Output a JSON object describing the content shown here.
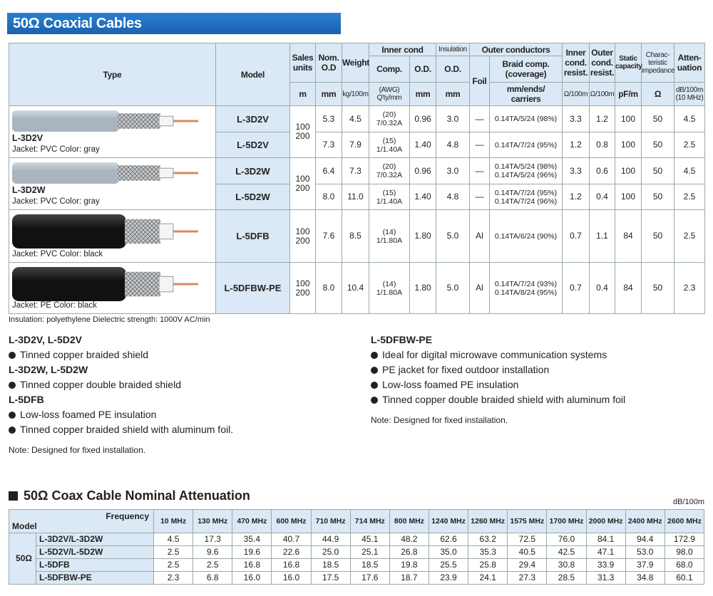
{
  "header": {
    "title": "50Ω Coaxial Cables"
  },
  "spec_table": {
    "head": {
      "type": "Type",
      "model": "Model",
      "sales": [
        "Sales",
        "units"
      ],
      "sales_unit": "m",
      "nom_od": [
        "Nom.",
        "O.D"
      ],
      "nom_od_unit": "mm",
      "weight": "Weight",
      "weight_unit": "kg/100m",
      "inner_cond": "Inner cond",
      "comp": "Comp.",
      "comp_unit": [
        "(AWG)",
        "Q'ty/mm"
      ],
      "inner_od": "O.D.",
      "inner_od_unit": "mm",
      "insulation": "Insulation",
      "ins_od": "O.D.",
      "ins_od_unit": "mm",
      "outer": "Outer conductors",
      "foil": "Foil",
      "braid": [
        "Braid comp.",
        "(coverage)"
      ],
      "braid_unit": [
        "mm/ends/",
        "carriers"
      ],
      "inner_res": [
        "Inner",
        "cond.",
        "resist."
      ],
      "inner_res_unit": "Ω/100m",
      "outer_res": [
        "Outer",
        "cond.",
        "resist."
      ],
      "outer_res_unit": "Ω/100m",
      "capacity": [
        "Static",
        "capacity"
      ],
      "capacity_unit": "pF/m",
      "impedance": [
        "Charac-",
        "teristic",
        "impedance"
      ],
      "impedance_unit": "Ω",
      "attenuation": [
        "Atten-",
        "uation"
      ],
      "attenuation_unit": [
        "dB/100m",
        "(10 MHz)"
      ]
    },
    "types": [
      {
        "name": "L-3D2V",
        "jacket": "Jacket: PVC  Color: gray"
      },
      {
        "name": "L-3D2W",
        "jacket": "Jacket: PVC  Color: gray"
      },
      {
        "jacket": "Jacket: PVC  Color: black"
      },
      {
        "jacket": "Jacket: PE  Color: black"
      }
    ],
    "sales_units": [
      [
        "100",
        "200"
      ],
      [
        "100",
        "200"
      ],
      [
        "100",
        "200"
      ],
      [
        "100",
        "200"
      ]
    ],
    "rows": [
      {
        "model": "L-3D2V",
        "nom_od": "5.3",
        "weight": "4.5",
        "comp": [
          "(20)",
          "7/0.32A"
        ],
        "inner_od": "0.96",
        "ins_od": "3.0",
        "foil": "—",
        "braid": [
          "0.14TA/5/24 (98%)"
        ],
        "inner_res": "3.3",
        "outer_res": "1.2",
        "capacity": "100",
        "impedance": "50",
        "attenuation": "4.5"
      },
      {
        "model": "L-5D2V",
        "nom_od": "7.3",
        "weight": "7.9",
        "comp": [
          "(15)",
          "1/1.40A"
        ],
        "inner_od": "1.40",
        "ins_od": "4.8",
        "foil": "—",
        "braid": [
          "0.14TA/7/24 (95%)"
        ],
        "inner_res": "1.2",
        "outer_res": "0.8",
        "capacity": "100",
        "impedance": "50",
        "attenuation": "2.5"
      },
      {
        "model": "L-3D2W",
        "nom_od": "6.4",
        "weight": "7.3",
        "comp": [
          "(20)",
          "7/0.32A"
        ],
        "inner_od": "0.96",
        "ins_od": "3.0",
        "foil": "—",
        "braid": [
          "0.14TA/5/24 (98%)",
          "0.14TA/5/24 (96%)"
        ],
        "inner_res": "3.3",
        "outer_res": "0.6",
        "capacity": "100",
        "impedance": "50",
        "attenuation": "4.5"
      },
      {
        "model": "L-5D2W",
        "nom_od": "8.0",
        "weight": "11.0",
        "comp": [
          "(15)",
          "1/1.40A"
        ],
        "inner_od": "1.40",
        "ins_od": "4.8",
        "foil": "—",
        "braid": [
          "0.14TA/7/24 (95%)",
          "0.14TA/7/24 (96%)"
        ],
        "inner_res": "1.2",
        "outer_res": "0.4",
        "capacity": "100",
        "impedance": "50",
        "attenuation": "2.5"
      },
      {
        "model": "L-5DFB",
        "nom_od": "7.6",
        "weight": "8.5",
        "comp": [
          "(14)",
          "1/1.80A"
        ],
        "inner_od": "1.80",
        "ins_od": "5.0",
        "foil": "Al",
        "braid": [
          "0.14TA/6/24 (90%)"
        ],
        "inner_res": "0.7",
        "outer_res": "1.1",
        "capacity": "84",
        "impedance": "50",
        "attenuation": "2.5"
      },
      {
        "model": "L-5DFBW-PE",
        "nom_od": "8.0",
        "weight": "10.4",
        "comp": [
          "(14)",
          "1/1.80A"
        ],
        "inner_od": "1.80",
        "ins_od": "5.0",
        "foil": "Al",
        "braid": [
          "0.14TA/7/24 (93%)",
          "0.14TA/8/24 (95%)"
        ],
        "inner_res": "0.7",
        "outer_res": "0.4",
        "capacity": "84",
        "impedance": "50",
        "attenuation": "2.3"
      }
    ],
    "footnote": "Insulation: polyethylene  Dielectric strength: 1000V AC/min"
  },
  "features": {
    "left": [
      {
        "heading": "L-3D2V, L-5D2V",
        "bullets": [
          "Tinned copper braided shield"
        ]
      },
      {
        "heading": "L-3D2W, L-5D2W",
        "bullets": [
          "Tinned copper double braided shield"
        ]
      },
      {
        "heading": "L-5DFB",
        "bullets": [
          "Low-loss foamed PE insulation",
          "Tinned copper braided shield with aluminum foil."
        ]
      }
    ],
    "left_note": "Note: Designed for fixed installation.",
    "right": [
      {
        "heading": "L-5DFBW-PE",
        "bullets": [
          "Ideal for digital microwave communication systems",
          "PE jacket for fixed outdoor installation",
          "Low-loss foamed PE insulation",
          "Tinned copper double braided shield with aluminum foil"
        ]
      }
    ],
    "right_note": "Note: Designed for fixed installation."
  },
  "attenuation": {
    "title": "50Ω Coax Cable Nominal Attenuation",
    "unit": "dB/100m",
    "frequency_label": "Frequency",
    "model_label": "Model",
    "group": "50Ω",
    "frequencies": [
      "10 MHz",
      "130 MHz",
      "470 MHz",
      "600 MHz",
      "710 MHz",
      "714 MHz",
      "800 MHz",
      "1240 MHz",
      "1260 MHz",
      "1575 MHz",
      "1700 MHz",
      "2000 MHz",
      "2400 MHz",
      "2600 MHz"
    ],
    "rows": [
      {
        "model": "L-3D2V/L-3D2W",
        "values": [
          "4.5",
          "17.3",
          "35.4",
          "40.7",
          "44.9",
          "45.1",
          "48.2",
          "62.6",
          "63.2",
          "72.5",
          "76.0",
          "84.1",
          "94.4",
          "172.9"
        ]
      },
      {
        "model": "L-5D2V/L-5D2W",
        "values": [
          "2.5",
          "9.6",
          "19.6",
          "22.6",
          "25.0",
          "25.1",
          "26.8",
          "35.0",
          "35.3",
          "40.5",
          "42.5",
          "47.1",
          "53.0",
          "98.0"
        ]
      },
      {
        "model": "L-5DFB",
        "values": [
          "2.5",
          "2.5",
          "16.8",
          "16.8",
          "18.5",
          "18.5",
          "19.8",
          "25.5",
          "25.8",
          "29.4",
          "30.8",
          "33.9",
          "37.9",
          "68.0"
        ]
      },
      {
        "model": "L-5DFBW-PE",
        "values": [
          "2.3",
          "6.8",
          "16.0",
          "16.0",
          "17.5",
          "17.6",
          "18.7",
          "23.9",
          "24.1",
          "27.3",
          "28.5",
          "31.3",
          "34.8",
          "60.1"
        ]
      }
    ]
  }
}
